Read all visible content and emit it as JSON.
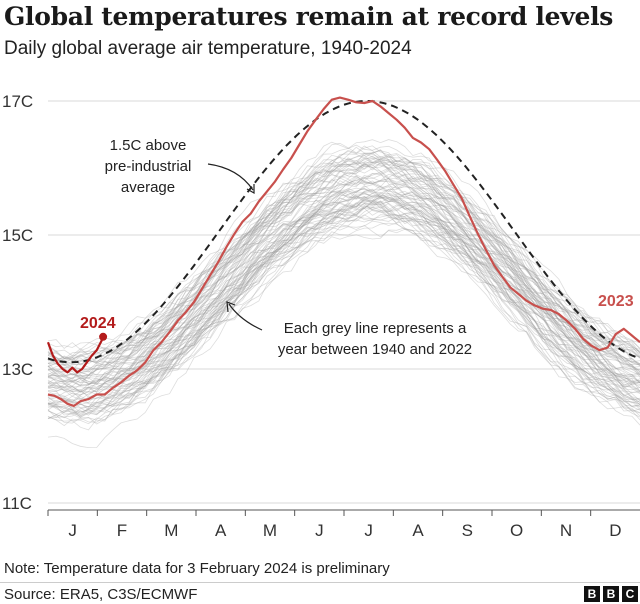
{
  "title": "Global temperatures remain at record levels",
  "subtitle": "Daily global average air temperature, 1940-2024",
  "note": "Note: Temperature data for 3 February 2024 is preliminary",
  "source": "Source: ERA5, C3S/ECMWF",
  "logo": [
    "B",
    "B",
    "C"
  ],
  "chart_data": {
    "type": "line",
    "ylim": [
      11,
      17.4
    ],
    "yticks": [
      {
        "value": 17,
        "label": "17C"
      },
      {
        "value": 15,
        "label": "15C"
      },
      {
        "value": 13,
        "label": "13C"
      },
      {
        "value": 11,
        "label": "11C"
      }
    ],
    "months": [
      "J",
      "F",
      "M",
      "A",
      "M",
      "J",
      "J",
      "A",
      "S",
      "O",
      "N",
      "D"
    ],
    "grid": true,
    "colors": {
      "grey_lines": "#9e9e9e",
      "series_2023": "#c8504d",
      "series_2024": "#b31b1b",
      "dashed": "#222222",
      "grid": "#d9d9d9"
    },
    "grey_years": {
      "first": 1940,
      "last": 2022
    },
    "series": [
      {
        "name": "2023",
        "label": "2023",
        "x": [
          0,
          4,
          8,
          12,
          16,
          20,
          25,
          30,
          35,
          40,
          45,
          50,
          55,
          60,
          65,
          70,
          75,
          80,
          85,
          90,
          95,
          100,
          105,
          110,
          115,
          120,
          125,
          130,
          135,
          140,
          145,
          150,
          155,
          160,
          165,
          170,
          175,
          180,
          185,
          190,
          195,
          200,
          205,
          210,
          215,
          220,
          225,
          230,
          235,
          240,
          245,
          250,
          255,
          260,
          265,
          270,
          275,
          280,
          285,
          290,
          295,
          300,
          305,
          310,
          315,
          320,
          325,
          330,
          335,
          340,
          345,
          350,
          355,
          360,
          365
        ],
        "values": [
          12.62,
          12.6,
          12.55,
          12.48,
          12.45,
          12.52,
          12.55,
          12.62,
          12.62,
          12.72,
          12.8,
          12.9,
          12.98,
          13.1,
          13.28,
          13.4,
          13.55,
          13.72,
          13.85,
          14.0,
          14.2,
          14.4,
          14.6,
          14.82,
          15.02,
          15.2,
          15.32,
          15.5,
          15.65,
          15.8,
          15.98,
          16.15,
          16.35,
          16.55,
          16.72,
          16.88,
          17.02,
          17.05,
          17.02,
          16.98,
          16.97,
          17.0,
          16.92,
          16.82,
          16.72,
          16.6,
          16.45,
          16.38,
          16.28,
          16.12,
          15.95,
          15.75,
          15.55,
          15.28,
          15.02,
          14.78,
          14.55,
          14.38,
          14.22,
          14.12,
          14.02,
          13.95,
          13.9,
          13.88,
          13.82,
          13.72,
          13.6,
          13.45,
          13.35,
          13.28,
          13.32,
          13.52,
          13.6,
          13.5,
          13.4
        ]
      },
      {
        "name": "2024",
        "label": "2024",
        "x": [
          0,
          3,
          6,
          9,
          12,
          15,
          18,
          21,
          24,
          27,
          30,
          33,
          34
        ],
        "values": [
          13.4,
          13.2,
          13.08,
          13.0,
          12.95,
          13.02,
          12.95,
          13.0,
          13.1,
          13.2,
          13.28,
          13.42,
          13.48
        ]
      }
    ],
    "annotations": [
      {
        "text_lines": [
          "1.5C above",
          "pre-industrial",
          "average"
        ]
      },
      {
        "text_lines": [
          "Each grey line represents a",
          "year between 1940 and 2022"
        ]
      }
    ]
  }
}
